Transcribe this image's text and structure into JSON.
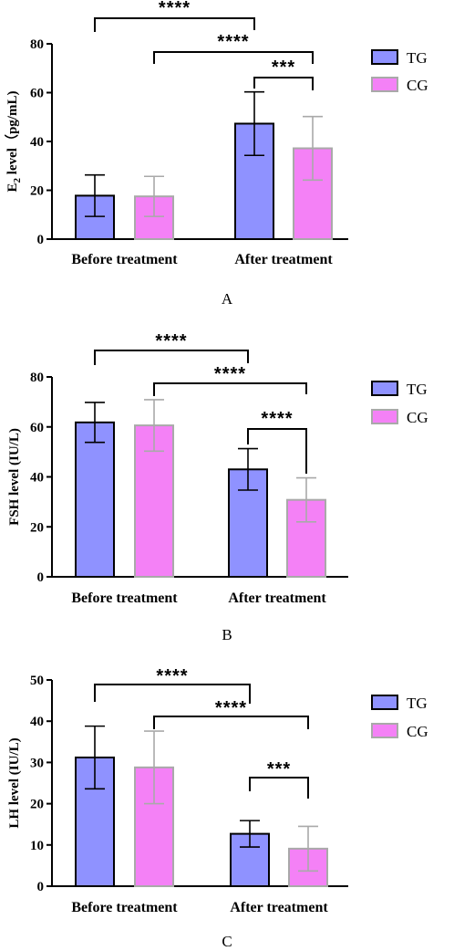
{
  "legend": [
    {
      "name": "TG",
      "color": "#8f92ff",
      "border": "#000000"
    },
    {
      "name": "CG",
      "color": "#f481f6",
      "border": "#a9a9a9"
    }
  ],
  "chart_data": [
    {
      "type": "bar",
      "panel_label": "A",
      "ylabel_main": "E",
      "ylabel_sub": "2",
      "ylabel_rest": " level（pg/mL)",
      "categories": [
        "Before treatment",
        "After treatment"
      ],
      "ylim": [
        0,
        80
      ],
      "yticks": [
        0,
        20,
        40,
        60,
        80
      ],
      "series": [
        {
          "name": "TG",
          "values": [
            17.8,
            47.3
          ],
          "errors": [
            8.5,
            13.0
          ]
        },
        {
          "name": "CG",
          "values": [
            17.5,
            37.2
          ],
          "errors": [
            8.2,
            13.0
          ]
        }
      ],
      "significance": [
        {
          "label": "****",
          "from": [
            0,
            0
          ],
          "to": [
            1,
            0
          ]
        },
        {
          "label": "****",
          "from": [
            0,
            1
          ],
          "to": [
            1,
            1
          ]
        },
        {
          "label": "***",
          "from": [
            1,
            0
          ],
          "to": [
            1,
            1
          ]
        }
      ]
    },
    {
      "type": "bar",
      "panel_label": "B",
      "ylabel_main": "FSH level (IU/L)",
      "categories": [
        "Before treatment",
        "After treatment"
      ],
      "ylim": [
        0,
        80
      ],
      "yticks": [
        0,
        20,
        40,
        60,
        80
      ],
      "series": [
        {
          "name": "TG",
          "values": [
            61.8,
            43.0
          ],
          "errors": [
            8.0,
            8.3
          ]
        },
        {
          "name": "CG",
          "values": [
            60.6,
            30.8
          ],
          "errors": [
            10.3,
            8.8
          ]
        }
      ],
      "significance": [
        {
          "label": "****",
          "from": [
            0,
            0
          ],
          "to": [
            1,
            0
          ]
        },
        {
          "label": "****",
          "from": [
            0,
            1
          ],
          "to": [
            1,
            1
          ]
        },
        {
          "label": "****",
          "from": [
            1,
            0
          ],
          "to": [
            1,
            1
          ]
        }
      ]
    },
    {
      "type": "bar",
      "panel_label": "C",
      "ylabel_main": "LH level (IU/L)",
      "categories": [
        "Before treatment",
        "After treatment"
      ],
      "ylim": [
        0,
        50
      ],
      "yticks": [
        0,
        10,
        20,
        30,
        40,
        50
      ],
      "series": [
        {
          "name": "TG",
          "values": [
            31.2,
            12.7
          ],
          "errors": [
            7.6,
            3.2
          ]
        },
        {
          "name": "CG",
          "values": [
            28.8,
            9.1
          ],
          "errors": [
            8.8,
            5.4
          ]
        }
      ],
      "significance": [
        {
          "label": "****",
          "from": [
            0,
            0
          ],
          "to": [
            1,
            0
          ]
        },
        {
          "label": "****",
          "from": [
            0,
            1
          ],
          "to": [
            1,
            1
          ]
        },
        {
          "label": "***",
          "from": [
            1,
            0
          ],
          "to": [
            1,
            1
          ]
        }
      ]
    }
  ]
}
